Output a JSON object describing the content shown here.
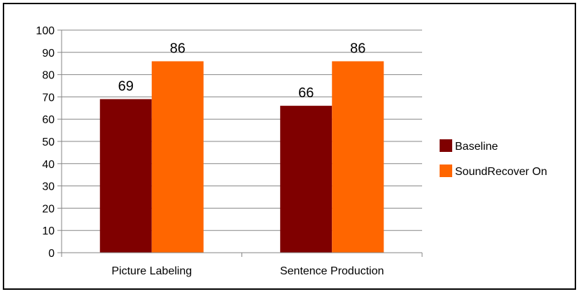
{
  "chart_data": {
    "type": "bar",
    "categories": [
      "Picture Labeling",
      "Sentence Production"
    ],
    "series": [
      {
        "name": "Baseline",
        "values": [
          69,
          66
        ],
        "color": "#7f0000"
      },
      {
        "name": "SoundRecover On",
        "values": [
          86,
          86
        ],
        "color": "#ff6600"
      }
    ],
    "data_labels": [
      "69",
      "66",
      "86",
      "86"
    ],
    "title": "",
    "xlabel": "",
    "ylabel": "",
    "ylim": [
      0,
      100
    ],
    "yticks": [
      0,
      10,
      20,
      30,
      40,
      50,
      60,
      70,
      80,
      90,
      100
    ],
    "grid": true,
    "legend_position": "right",
    "colors": {
      "grid": "#868686",
      "axis": "#868686",
      "border": "#000000"
    }
  }
}
